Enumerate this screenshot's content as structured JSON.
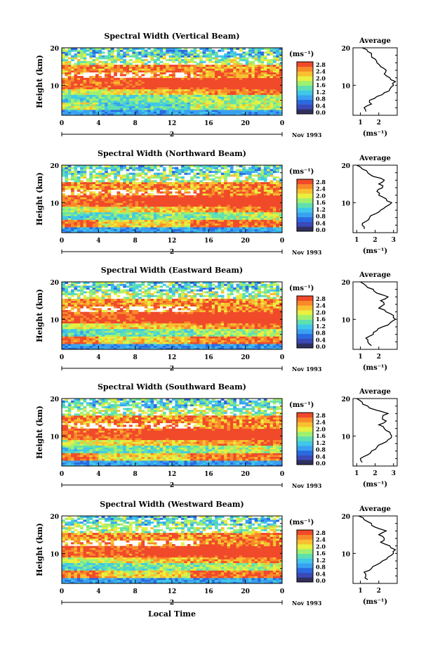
{
  "date_label": "Nov 1993",
  "xlabel": "Local Time",
  "day_label": "2",
  "colorbar": {
    "unit": "(ms⁻¹)",
    "ticks": [
      "2.8",
      "2.4",
      "2.0",
      "1.6",
      "1.2",
      "0.8",
      "0.4",
      "0.0"
    ]
  },
  "colors": {
    "scale": [
      "#303060",
      "#3a4ab8",
      "#2a6ae0",
      "#3aa0f0",
      "#40c8e8",
      "#60e0b0",
      "#a0f070",
      "#e8f040",
      "#f8c030",
      "#f88a2a",
      "#f04a2a"
    ]
  },
  "chart_data": [
    {
      "type": "heatmap",
      "title": "Spectral Width (Vertical Beam)",
      "ylabel": "Height (km)",
      "x_ticks": [
        "0",
        "4",
        "8",
        "12",
        "16",
        "20",
        "0"
      ],
      "y_ticks": [
        "20",
        "10"
      ],
      "xlim": [
        0,
        24
      ],
      "ylim": [
        2,
        20
      ],
      "profile": {
        "title": "Average",
        "xlabel": "(ms⁻¹)",
        "x_ticks": [
          "1",
          "2"
        ],
        "xlim": [
          0.6,
          3.0
        ],
        "y_ticks": [
          "20",
          "10"
        ],
        "height": [
          3,
          4,
          5,
          6,
          7,
          8,
          9,
          10,
          11,
          12,
          13,
          14,
          15,
          16,
          17,
          18,
          19,
          20
        ],
        "width": [
          1.3,
          1.2,
          1.6,
          1.5,
          1.9,
          2.3,
          2.6,
          2.8,
          2.9,
          2.6,
          2.3,
          2.4,
          2.1,
          1.9,
          1.8,
          1.6,
          1.4,
          1.1
        ]
      }
    },
    {
      "type": "heatmap",
      "title": "Spectral Width (Northward Beam)",
      "ylabel": "Height (km)",
      "x_ticks": [
        "0",
        "4",
        "8",
        "12",
        "16",
        "20",
        "0"
      ],
      "y_ticks": [
        "20",
        "10"
      ],
      "xlim": [
        0,
        24
      ],
      "ylim": [
        2,
        20
      ],
      "profile": {
        "title": "Average",
        "xlabel": "(ms⁻¹)",
        "x_ticks": [
          "1",
          "2",
          "3"
        ],
        "xlim": [
          0.8,
          3.2
        ],
        "y_ticks": [
          "20",
          "10"
        ],
        "height": [
          3,
          4,
          5,
          6,
          7,
          8,
          9,
          10,
          11,
          12,
          13,
          14,
          15,
          16,
          17,
          18,
          19,
          20
        ],
        "width": [
          1.4,
          1.3,
          1.5,
          1.7,
          2.0,
          2.3,
          2.6,
          2.9,
          2.6,
          2.2,
          2.1,
          2.4,
          2.2,
          2.5,
          1.9,
          1.6,
          1.3,
          1.0
        ]
      }
    },
    {
      "type": "heatmap",
      "title": "Spectral Width (Eastward Beam)",
      "ylabel": "Height (km)",
      "x_ticks": [
        "0",
        "4",
        "8",
        "12",
        "16",
        "20",
        "0"
      ],
      "y_ticks": [
        "20",
        "10"
      ],
      "xlim": [
        0,
        24
      ],
      "ylim": [
        2,
        20
      ],
      "profile": {
        "title": "Average",
        "xlabel": "(ms⁻¹)",
        "x_ticks": [
          "1",
          "2"
        ],
        "xlim": [
          0.6,
          3.0
        ],
        "y_ticks": [
          "20",
          "10"
        ],
        "height": [
          3,
          4,
          5,
          6,
          7,
          8,
          9,
          10,
          11,
          12,
          13,
          14,
          15,
          16,
          17,
          18,
          19,
          20
        ],
        "width": [
          1.6,
          1.4,
          1.3,
          1.7,
          1.9,
          2.2,
          2.6,
          2.9,
          2.8,
          2.4,
          2.0,
          2.3,
          2.1,
          2.5,
          1.9,
          1.7,
          1.3,
          1.0
        ]
      }
    },
    {
      "type": "heatmap",
      "title": "Spectral Width (Southward Beam)",
      "ylabel": "Height (km)",
      "x_ticks": [
        "0",
        "4",
        "8",
        "12",
        "16",
        "20",
        "0"
      ],
      "y_ticks": [
        "20",
        "10"
      ],
      "xlim": [
        0,
        24
      ],
      "ylim": [
        2,
        20
      ],
      "profile": {
        "title": "Average",
        "xlabel": "(ms⁻¹)",
        "x_ticks": [
          "1",
          "2",
          "3"
        ],
        "xlim": [
          0.8,
          3.2
        ],
        "y_ticks": [
          "20",
          "10"
        ],
        "height": [
          3,
          4,
          5,
          6,
          7,
          8,
          9,
          10,
          11,
          12,
          13,
          14,
          15,
          16,
          17,
          18,
          19,
          20
        ],
        "width": [
          1.3,
          1.2,
          1.6,
          1.8,
          2.1,
          2.4,
          2.7,
          2.9,
          2.8,
          2.5,
          2.2,
          2.6,
          2.4,
          2.7,
          2.0,
          1.6,
          1.3,
          1.0
        ]
      }
    },
    {
      "type": "heatmap",
      "title": "Spectral Width (Westward Beam)",
      "ylabel": "Height (km)",
      "x_ticks": [
        "0",
        "4",
        "8",
        "12",
        "16",
        "20",
        "0"
      ],
      "y_ticks": [
        "20",
        "10"
      ],
      "xlim": [
        0,
        24
      ],
      "ylim": [
        2,
        20
      ],
      "profile": {
        "title": "Average",
        "xlabel": "(ms⁻¹)",
        "x_ticks": [
          "1",
          "2"
        ],
        "xlim": [
          0.6,
          3.0
        ],
        "y_ticks": [
          "20",
          "10"
        ],
        "height": [
          3,
          4,
          5,
          6,
          7,
          8,
          9,
          10,
          11,
          12,
          13,
          14,
          15,
          16,
          17,
          18,
          19,
          20
        ],
        "width": [
          1.4,
          1.3,
          1.2,
          1.6,
          1.9,
          2.2,
          2.5,
          2.8,
          2.9,
          2.6,
          2.1,
          2.3,
          2.0,
          2.4,
          1.8,
          1.6,
          1.2,
          0.9
        ]
      }
    }
  ]
}
